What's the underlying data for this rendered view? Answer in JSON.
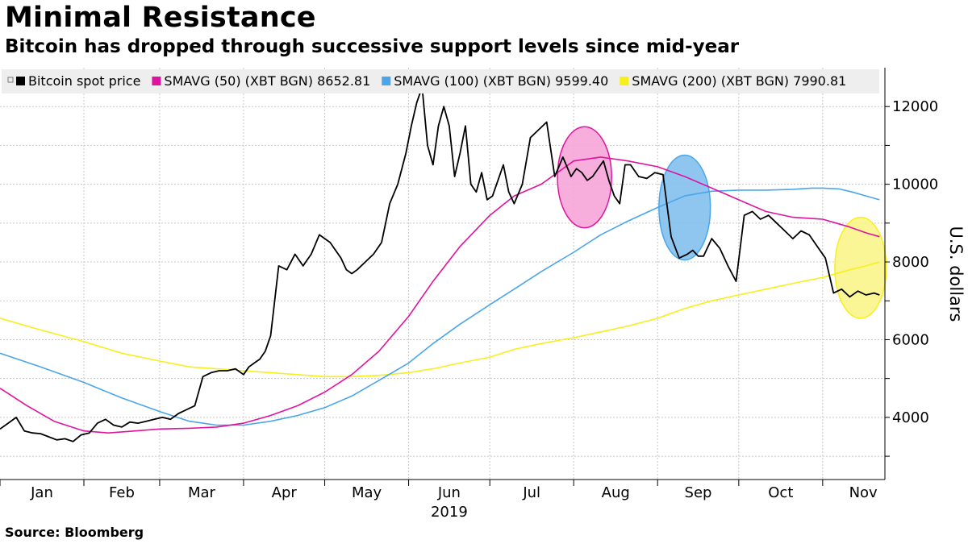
{
  "title": "Minimal Resistance",
  "subtitle": "Bitcoin has dropped through successive support levels since mid-year",
  "source": "Source: Bloomberg",
  "colors": {
    "spot": "#000000",
    "sma50": "#e0139f",
    "sma100": "#4aa6ea",
    "sma200": "#f7ef1c",
    "grid": "#c8c8c8",
    "legend_bg": "#eeeeee",
    "circle_pink": "#f7a5d8",
    "circle_blue": "#82c0ee",
    "circle_yellow": "#fbf58a"
  },
  "chart_data": {
    "type": "line",
    "ylabel": "U.S. dollars",
    "xlabel": "2019",
    "ylim": [
      2400,
      13000
    ],
    "yticks": [
      4000,
      6000,
      8000,
      10000,
      12000
    ],
    "xlim": [
      0,
      327
    ],
    "month_labels": [
      "Jan",
      "Feb",
      "Mar",
      "Apr",
      "May",
      "Jun",
      "Jul",
      "Aug",
      "Sep",
      "Oct",
      "Nov"
    ],
    "month_starts": [
      0,
      31,
      59,
      90,
      120,
      151,
      181,
      212,
      243,
      273,
      304
    ],
    "grid": true,
    "legend_position": "top",
    "legend": [
      {
        "key": "spot",
        "label": "Bitcoin spot price"
      },
      {
        "key": "sma50",
        "label": "SMAVG (50) (XBT BGN) 8652.81"
      },
      {
        "key": "sma100",
        "label": "SMAVG (100) (XBT BGN) 9599.40"
      },
      {
        "key": "sma200",
        "label": "SMAVG (200) (XBT BGN) 7990.81"
      }
    ],
    "series": [
      {
        "key": "spot",
        "name": "Bitcoin spot price",
        "x": [
          0,
          3,
          6,
          9,
          12,
          15,
          18,
          21,
          24,
          27,
          30,
          33,
          36,
          39,
          42,
          45,
          48,
          51,
          54,
          57,
          60,
          63,
          66,
          69,
          72,
          75,
          78,
          81,
          84,
          87,
          90,
          92,
          94,
          96,
          98,
          100,
          103,
          106,
          109,
          112,
          115,
          118,
          120,
          122,
          124,
          126,
          128,
          130,
          132,
          135,
          138,
          141,
          144,
          147,
          150,
          152,
          154,
          156,
          158,
          160,
          162,
          164,
          166,
          168,
          170,
          172,
          174,
          176,
          178,
          180,
          182,
          184,
          186,
          188,
          190,
          193,
          196,
          199,
          202,
          205,
          208,
          211,
          213,
          215,
          217,
          219,
          221,
          223,
          225,
          227,
          229,
          231,
          233,
          236,
          239,
          242,
          245,
          248,
          251,
          254,
          256,
          258,
          260,
          263,
          266,
          269,
          272,
          275,
          278,
          281,
          284,
          287,
          290,
          293,
          296,
          299,
          302,
          305,
          308,
          311,
          314,
          317,
          320,
          323,
          325
        ],
        "y": [
          3700,
          3850,
          4000,
          3650,
          3600,
          3580,
          3500,
          3420,
          3450,
          3380,
          3550,
          3600,
          3850,
          3950,
          3800,
          3750,
          3880,
          3850,
          3900,
          3950,
          4000,
          3950,
          4100,
          4200,
          4300,
          5050,
          5150,
          5200,
          5200,
          5250,
          5100,
          5300,
          5400,
          5500,
          5700,
          6100,
          7900,
          7800,
          8200,
          7900,
          8200,
          8700,
          8600,
          8500,
          8300,
          8100,
          7800,
          7700,
          7800,
          8000,
          8200,
          8500,
          9500,
          10000,
          10800,
          11500,
          12100,
          12500,
          11000,
          10500,
          11500,
          12000,
          11500,
          10200,
          10800,
          11500,
          10000,
          9800,
          10300,
          9600,
          9700,
          10100,
          10500,
          9800,
          9500,
          10000,
          11200,
          11400,
          11600,
          10200,
          10700,
          10200,
          10400,
          10300,
          10100,
          10200,
          10400,
          10600,
          10100,
          9700,
          9500,
          10500,
          10500,
          10200,
          10150,
          10300,
          10250,
          8650,
          8100,
          8200,
          8300,
          8150,
          8150,
          8600,
          8350,
          7900,
          7500,
          9200,
          9300,
          9100,
          9200,
          9000,
          8800,
          8600,
          8800,
          8700,
          8400,
          8100,
          7200,
          7300,
          7100,
          7250,
          7150,
          7200,
          7150
        ],
        "smooth": false
      },
      {
        "key": "sma50",
        "name": "SMAVG (50) (XBT BGN) 8652.81",
        "x": [
          0,
          10,
          20,
          31,
          40,
          50,
          59,
          70,
          80,
          90,
          100,
          110,
          120,
          130,
          140,
          151,
          160,
          170,
          181,
          190,
          200,
          212,
          222,
          232,
          243,
          253,
          263,
          273,
          283,
          293,
          304,
          314,
          320,
          325
        ],
        "y": [
          4750,
          4300,
          3900,
          3650,
          3600,
          3650,
          3700,
          3720,
          3750,
          3850,
          4050,
          4300,
          4650,
          5100,
          5700,
          6600,
          7500,
          8400,
          9200,
          9700,
          10000,
          10600,
          10700,
          10600,
          10450,
          10200,
          9900,
          9600,
          9300,
          9150,
          9100,
          8900,
          8750,
          8650
        ]
      },
      {
        "key": "sma100",
        "name": "SMAVG (100) (XBT BGN) 9599.40",
        "x": [
          0,
          15,
          31,
          45,
          59,
          70,
          80,
          90,
          100,
          110,
          120,
          130,
          140,
          151,
          160,
          170,
          181,
          190,
          200,
          212,
          222,
          232,
          243,
          253,
          263,
          273,
          283,
          293,
          300,
          304,
          310,
          315,
          320,
          325
        ],
        "y": [
          5650,
          5300,
          4900,
          4500,
          4150,
          3900,
          3800,
          3800,
          3900,
          4050,
          4250,
          4550,
          4950,
          5400,
          5900,
          6400,
          6900,
          7300,
          7750,
          8250,
          8700,
          9050,
          9400,
          9700,
          9820,
          9850,
          9850,
          9870,
          9900,
          9900,
          9880,
          9800,
          9700,
          9600
        ]
      },
      {
        "key": "sma200",
        "name": "SMAVG (200) (XBT BGN) 7990.81",
        "x": [
          0,
          15,
          31,
          45,
          59,
          70,
          80,
          90,
          100,
          110,
          120,
          130,
          140,
          151,
          160,
          170,
          181,
          190,
          200,
          212,
          222,
          232,
          243,
          253,
          263,
          273,
          283,
          293,
          304,
          314,
          320,
          325
        ],
        "y": [
          6550,
          6250,
          5950,
          5650,
          5450,
          5300,
          5250,
          5200,
          5150,
          5100,
          5050,
          5050,
          5080,
          5150,
          5250,
          5400,
          5550,
          5750,
          5900,
          6050,
          6200,
          6350,
          6550,
          6800,
          7000,
          7150,
          7300,
          7450,
          7600,
          7800,
          7900,
          8000
        ]
      }
    ],
    "annotations": [
      {
        "shape": "ellipse",
        "color_key": "circle_pink",
        "stroke_key": "sma50",
        "x_center": 216,
        "y_center": 10180,
        "x_radius": 10,
        "y_radius": 1300
      },
      {
        "shape": "ellipse",
        "color_key": "circle_blue",
        "stroke_key": "sma100",
        "x_center": 253,
        "y_center": 9400,
        "x_radius": 9.5,
        "y_radius": 1350
      },
      {
        "shape": "ellipse",
        "color_key": "circle_yellow",
        "stroke_key": "sma200",
        "x_center": 318,
        "y_center": 7850,
        "x_radius": 9.5,
        "y_radius": 1300
      }
    ]
  }
}
